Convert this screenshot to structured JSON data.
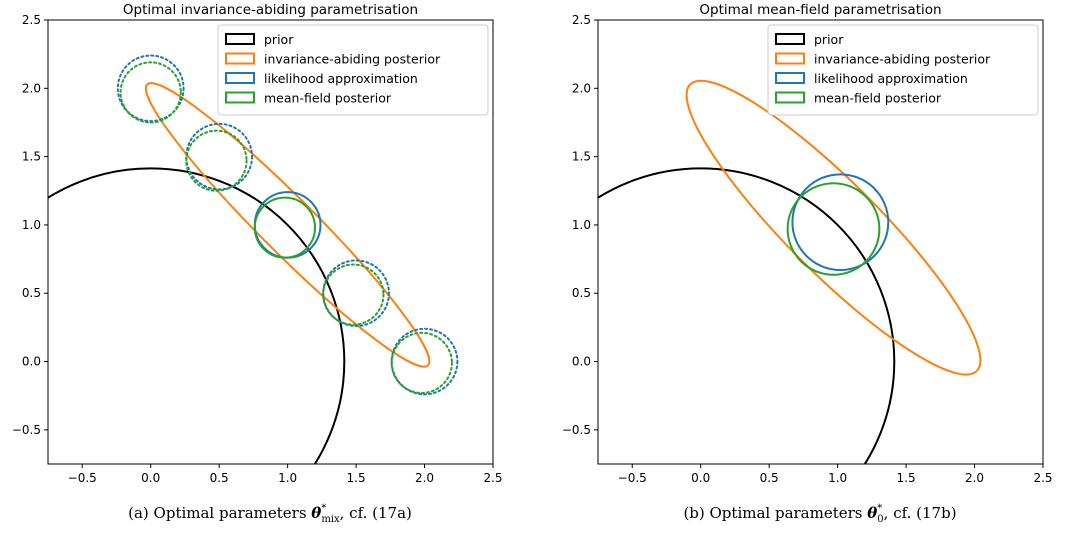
{
  "chart_data": [
    {
      "type": "contour",
      "title": "Optimal invariance-abiding parametrisation",
      "caption": "(a) Optimal parameters θ*mix, cf. (17a)",
      "caption_parts": {
        "prefix": "(a) Optimal parameters ",
        "symbol": "θ",
        "sup": "*",
        "sub": "mix",
        "suffix": ", cf. (17a)"
      },
      "xlim": [
        -0.75,
        2.5
      ],
      "ylim": [
        -0.75,
        2.5
      ],
      "xticks": [
        -0.5,
        0.0,
        0.5,
        1.0,
        1.5,
        2.0,
        2.5
      ],
      "xtick_labels": [
        "−0.5",
        "0.0",
        "0.5",
        "1.0",
        "1.5",
        "2.0",
        "2.5"
      ],
      "yticks": [
        -0.5,
        0.0,
        0.5,
        1.0,
        1.5,
        2.0,
        2.5
      ],
      "ytick_labels": [
        "−0.5",
        "0.0",
        "0.5",
        "1.0",
        "1.5",
        "2.0",
        "2.5"
      ],
      "legend": {
        "position": "upper right",
        "entries": [
          {
            "label": "prior",
            "color": "#000000"
          },
          {
            "label": "invariance-abiding posterior",
            "color": "#ff7f0e"
          },
          {
            "label": "likelihood approximation",
            "color": "#1f77b4"
          },
          {
            "label": "mean-field posterior",
            "color": "#2ca02c"
          }
        ]
      },
      "shapes": [
        {
          "kind": "circle",
          "series": "prior",
          "color": "#000000",
          "cx": 0,
          "cy": 0,
          "r": 1.414,
          "style": "solid"
        },
        {
          "kind": "ellipse",
          "series": "invariance-abiding posterior",
          "color": "#ff7f0e",
          "cx": 1.0,
          "cy": 1.0,
          "a": 1.45,
          "b": 0.2,
          "angle_deg": -45,
          "style": "solid"
        },
        {
          "kind": "circle",
          "series": "likelihood approximation",
          "color": "#1f77b4",
          "cx": 1.0,
          "cy": 1.0,
          "r": 0.24,
          "style": "solid"
        },
        {
          "kind": "circle",
          "series": "mean-field posterior",
          "color": "#2ca02c",
          "cx": 0.98,
          "cy": 0.98,
          "r": 0.22,
          "style": "solid"
        },
        {
          "kind": "circle",
          "series": "likelihood approximation",
          "color": "#1f77b4",
          "cx": 0.0,
          "cy": 2.0,
          "r": 0.24,
          "style": "dotted"
        },
        {
          "kind": "circle",
          "series": "mean-field posterior",
          "color": "#2ca02c",
          "cx": 0.0,
          "cy": 1.97,
          "r": 0.22,
          "style": "dotted"
        },
        {
          "kind": "circle",
          "series": "likelihood approximation",
          "color": "#1f77b4",
          "cx": 0.5,
          "cy": 1.5,
          "r": 0.24,
          "style": "dotted"
        },
        {
          "kind": "circle",
          "series": "mean-field posterior",
          "color": "#2ca02c",
          "cx": 0.48,
          "cy": 1.47,
          "r": 0.22,
          "style": "dotted"
        },
        {
          "kind": "circle",
          "series": "likelihood approximation",
          "color": "#1f77b4",
          "cx": 1.5,
          "cy": 0.5,
          "r": 0.24,
          "style": "dotted"
        },
        {
          "kind": "circle",
          "series": "mean-field posterior",
          "color": "#2ca02c",
          "cx": 1.48,
          "cy": 0.49,
          "r": 0.22,
          "style": "dotted"
        },
        {
          "kind": "circle",
          "series": "likelihood approximation",
          "color": "#1f77b4",
          "cx": 2.0,
          "cy": 0.0,
          "r": 0.24,
          "style": "dotted"
        },
        {
          "kind": "circle",
          "series": "mean-field posterior",
          "color": "#2ca02c",
          "cx": 1.98,
          "cy": -0.01,
          "r": 0.22,
          "style": "dotted"
        }
      ]
    },
    {
      "type": "contour",
      "title": "Optimal mean-field parametrisation",
      "caption": "(b) Optimal parameters θ*0, cf. (17b)",
      "caption_parts": {
        "prefix": "(b) Optimal parameters ",
        "symbol": "θ",
        "sup": "*",
        "sub": "0",
        "suffix": ", cf. (17b)"
      },
      "xlim": [
        -0.75,
        2.5
      ],
      "ylim": [
        -0.75,
        2.5
      ],
      "xticks": [
        -0.5,
        0.0,
        0.5,
        1.0,
        1.5,
        2.0,
        2.5
      ],
      "xtick_labels": [
        "−0.5",
        "0.0",
        "0.5",
        "1.0",
        "1.5",
        "2.0",
        "2.5"
      ],
      "yticks": [
        -0.5,
        0.0,
        0.5,
        1.0,
        1.5,
        2.0,
        2.5
      ],
      "ytick_labels": [
        "−0.5",
        "0.0",
        "0.5",
        "1.0",
        "1.5",
        "2.0",
        "2.5"
      ],
      "legend": {
        "position": "upper right",
        "entries": [
          {
            "label": "prior",
            "color": "#000000"
          },
          {
            "label": "invariance-abiding posterior",
            "color": "#ff7f0e"
          },
          {
            "label": "likelihood approximation",
            "color": "#1f77b4"
          },
          {
            "label": "mean-field posterior",
            "color": "#2ca02c"
          }
        ]
      },
      "shapes": [
        {
          "kind": "circle",
          "series": "prior",
          "color": "#000000",
          "cx": 0,
          "cy": 0,
          "r": 1.414,
          "style": "solid"
        },
        {
          "kind": "ellipse",
          "series": "invariance-abiding posterior",
          "color": "#ff7f0e",
          "cx": 0.97,
          "cy": 0.98,
          "a": 1.48,
          "b": 0.335,
          "angle_deg": -45,
          "style": "solid"
        },
        {
          "kind": "circle",
          "series": "likelihood approximation",
          "color": "#1f77b4",
          "cx": 1.02,
          "cy": 1.02,
          "r": 0.35,
          "style": "solid"
        },
        {
          "kind": "circle",
          "series": "mean-field posterior",
          "color": "#2ca02c",
          "cx": 0.97,
          "cy": 0.97,
          "r": 0.335,
          "style": "solid"
        }
      ]
    }
  ]
}
